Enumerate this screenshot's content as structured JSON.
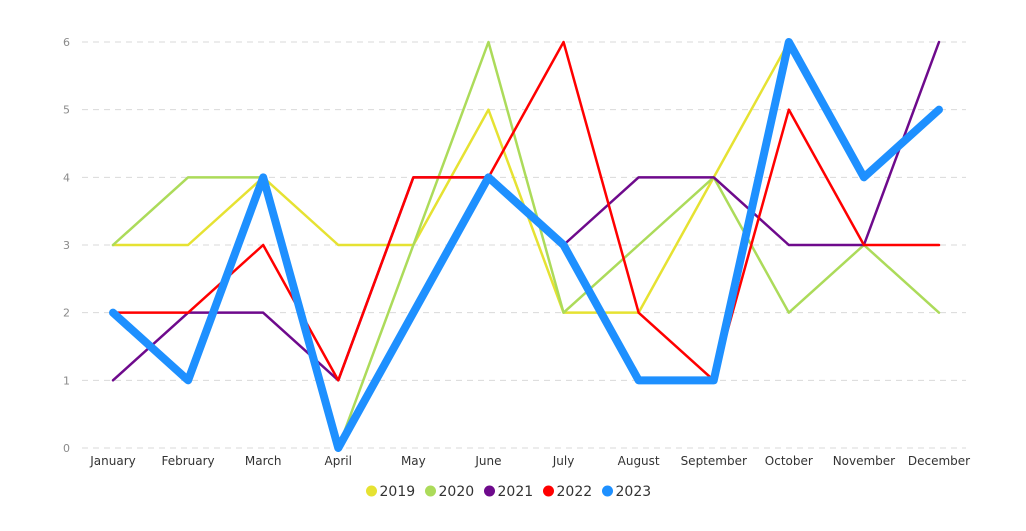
{
  "chart_data": {
    "type": "line",
    "categories": [
      "January",
      "February",
      "March",
      "April",
      "May",
      "June",
      "July",
      "August",
      "September",
      "October",
      "November",
      "December"
    ],
    "ylim": [
      0,
      6
    ],
    "yticks": [
      "0",
      "1",
      "2",
      "3",
      "4",
      "5",
      "6"
    ],
    "grid": true,
    "legend_position": "bottom",
    "series": [
      {
        "name": "2019",
        "color": "#e6e232",
        "values": [
          3,
          3,
          4,
          3,
          3,
          5,
          2,
          2,
          4,
          6,
          4,
          5
        ]
      },
      {
        "name": "2020",
        "color": "#acdb5a",
        "values": [
          3,
          4,
          4,
          0,
          3,
          6,
          2,
          3,
          4,
          2,
          3,
          2
        ]
      },
      {
        "name": "2021",
        "color": "#6e0a8c",
        "values": [
          1,
          2,
          2,
          1,
          4,
          4,
          3,
          4,
          4,
          3,
          3,
          6
        ]
      },
      {
        "name": "2022",
        "color": "#ff0000",
        "values": [
          2,
          2,
          3,
          1,
          4,
          4,
          6,
          2,
          1,
          5,
          3,
          3
        ]
      },
      {
        "name": "2023",
        "color": "#1e90ff",
        "values": [
          2,
          1,
          4,
          0,
          2,
          4,
          3,
          1,
          1,
          6,
          4,
          5
        ]
      }
    ]
  }
}
